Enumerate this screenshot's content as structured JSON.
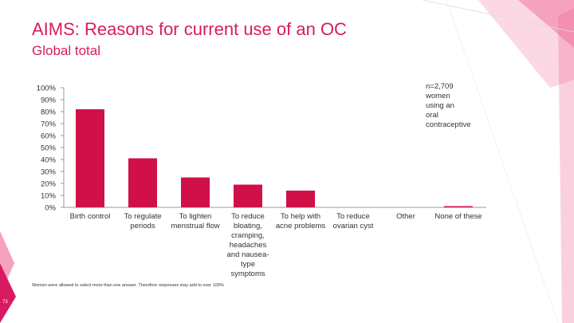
{
  "slide": {
    "title": "AIMS: Reasons for current use of an OC",
    "subtitle": "Global total",
    "sample_note": "n=2,709\nwomen\nusing an\noral\ncontraceptive",
    "footnote": "Women were allowed to select more than one answer. Therefore responses may add to over 100%",
    "page_number": "73"
  },
  "colors": {
    "accent": "#d81b60",
    "bar": "#d01048",
    "text": "#333333",
    "axis": "#999999"
  },
  "chart_data": {
    "type": "bar",
    "categories": [
      "Birth control",
      "To regulate periods",
      "To lighten menstrual flow",
      "To reduce bloating, cramping, headaches and nausea-type symptoms",
      "To help with acne problems",
      "To reduce ovarian cyst",
      "Other",
      "None of these"
    ],
    "category_lines": [
      [
        "Birth control"
      ],
      [
        "To regulate",
        "periods"
      ],
      [
        "To lighten",
        "menstrual flow"
      ],
      [
        "To reduce",
        "bloating,",
        "cramping,",
        "headaches",
        "and nausea-",
        "type",
        "symptoms"
      ],
      [
        "To help with",
        "acne problems"
      ],
      [
        "To reduce",
        "ovarian cyst"
      ],
      [
        "Other"
      ],
      [
        "None of these"
      ]
    ],
    "values": [
      82,
      41,
      25,
      19,
      14,
      0,
      0,
      1
    ],
    "yticks": [
      "0%",
      "10%",
      "20%",
      "30%",
      "40%",
      "50%",
      "60%",
      "70%",
      "80%",
      "90%",
      "100%"
    ],
    "ylim": [
      0,
      100
    ],
    "xlabel": "",
    "ylabel": "",
    "title": "",
    "grid": false,
    "legend": "none"
  }
}
